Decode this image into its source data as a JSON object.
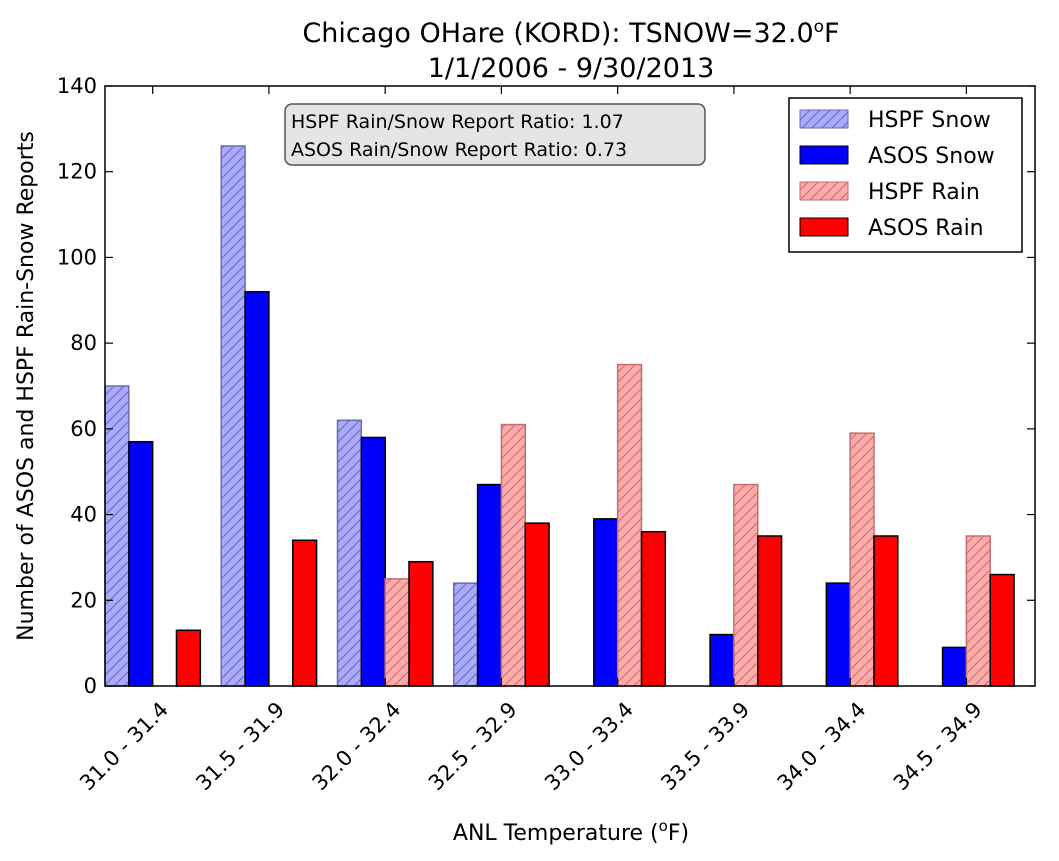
{
  "chart_data": {
    "type": "bar",
    "title_line1": "Chicago OHare (KORD): TSNOW=32.0",
    "title_degree_sup": "o",
    "title_unit": "F",
    "title_line2": "1/1/2006 - 9/30/2013",
    "xlabel_prefix": "ANL Temperature (",
    "xlabel_sup": "o",
    "xlabel_suffix": "F)",
    "ylabel": "Number of ASOS and HSPF Rain-Snow Reports",
    "ylim": [
      0,
      140
    ],
    "yticks": [
      0,
      20,
      40,
      60,
      80,
      100,
      120,
      140
    ],
    "categories": [
      "31.0 - 31.4",
      "31.5 - 31.9",
      "32.0 - 32.4",
      "32.5 - 32.9",
      "33.0 - 33.4",
      "33.5 - 33.9",
      "34.0 - 34.4",
      "34.5 - 34.9"
    ],
    "series": [
      {
        "name": "HSPF Snow",
        "values": [
          70,
          126,
          62,
          24,
          0,
          0,
          0,
          0
        ],
        "color": "#aaaaff",
        "hatch": true,
        "hatch_color": "#6a6ab0"
      },
      {
        "name": "ASOS Snow",
        "values": [
          57,
          92,
          58,
          47,
          39,
          12,
          24,
          9
        ],
        "color": "#0000ff",
        "hatch": false
      },
      {
        "name": "HSPF Rain",
        "values": [
          0,
          0,
          25,
          61,
          75,
          47,
          59,
          35
        ],
        "color": "#ffaaaa",
        "hatch": true,
        "hatch_color": "#c07070"
      },
      {
        "name": "ASOS Rain",
        "values": [
          13,
          34,
          29,
          38,
          36,
          35,
          35,
          26
        ],
        "color": "#ff0000",
        "hatch": false
      }
    ],
    "annotations": [
      "HSPF Rain/Snow Report Ratio: 1.07",
      "ASOS Rain/Snow Report Ratio: 0.73"
    ],
    "legend_position": "top-right",
    "grid": false
  }
}
